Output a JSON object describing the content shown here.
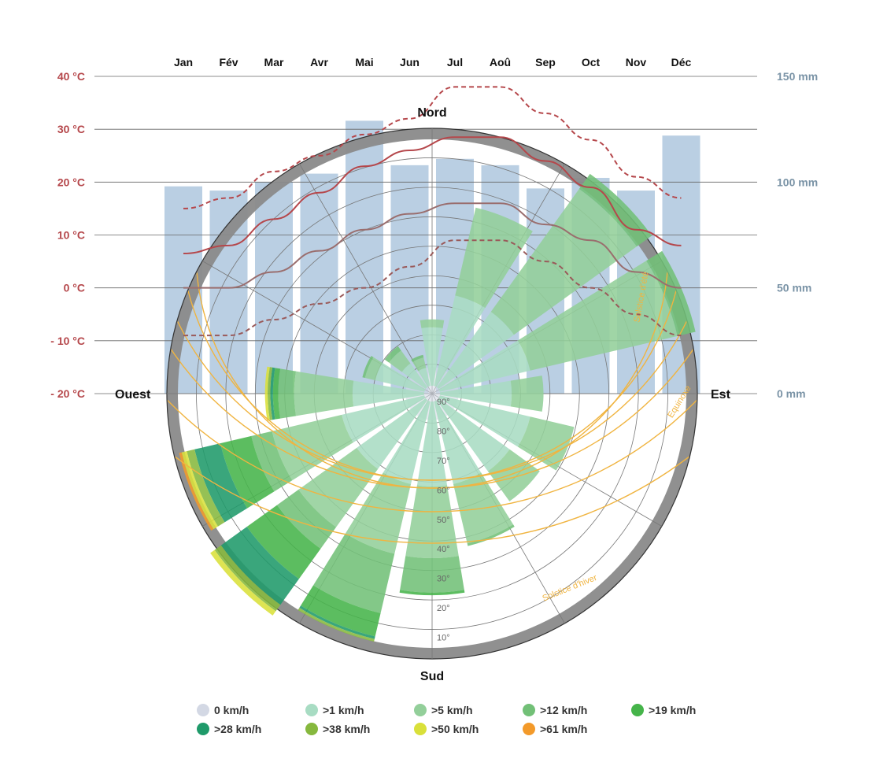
{
  "chart_data": {
    "type": "climate-windrose",
    "months": [
      "Jan",
      "Fév",
      "Mar",
      "Avr",
      "Mai",
      "Jun",
      "Jul",
      "Aoû",
      "Sep",
      "Oct",
      "Nov",
      "Déc"
    ],
    "temperature_axis": {
      "ticks": [
        "40 °C",
        "30 °C",
        "20 °C",
        "10 °C",
        "0 °C",
        "- 10 °C",
        "- 20 °C"
      ],
      "values": [
        40,
        30,
        20,
        10,
        0,
        -10,
        -20
      ],
      "range": [
        -20,
        40
      ]
    },
    "precipitation_axis": {
      "ticks": [
        "150 mm",
        "100 mm",
        "50 mm",
        "0 mm"
      ],
      "values": [
        150,
        100,
        50,
        0
      ],
      "range": [
        0,
        150
      ]
    },
    "precipitation_mm": [
      98,
      96,
      100,
      104,
      129,
      108,
      111,
      108,
      97,
      102,
      96,
      122
    ],
    "temperature_series": [
      {
        "values": [
          15,
          17,
          22,
          25,
          29,
          32,
          38,
          38,
          33,
          28,
          21,
          17
        ]
      },
      {
        "values": [
          6.5,
          8,
          13,
          18,
          23,
          26,
          28.5,
          28.5,
          24,
          19,
          11,
          8
        ]
      },
      {
        "values": [
          0,
          0,
          3,
          7,
          11,
          14,
          16,
          16,
          12,
          9,
          3,
          0
        ]
      },
      {
        "values": [
          -9,
          -9,
          -6,
          -3,
          0,
          4,
          9,
          9,
          5,
          0,
          -5,
          -9
        ]
      }
    ],
    "cardinal_labels": {
      "north": "Nord",
      "south": "Sud",
      "west": "Ouest",
      "east": "Est"
    },
    "sun_altitude_labels": [
      "90°",
      "80°",
      "70°",
      "60°",
      "50°",
      "40°",
      "30°",
      "20°",
      "10°"
    ],
    "sun_path_labels": {
      "winter_solstice": "Solstice d'hiver",
      "equinox": "Equinoxe",
      "summer_solstice": "Solstice d'été"
    },
    "wind_speed_classes": [
      {
        "label": "0 km/h",
        "color": "#d3d8e4"
      },
      {
        "label": ">1 km/h",
        "color": "#a8dcc3"
      },
      {
        "label": ">5 km/h",
        "color": "#93cf9a"
      },
      {
        "label": ">12 km/h",
        "color": "#72c077"
      },
      {
        "label": ">19 km/h",
        "color": "#45b44a"
      },
      {
        "label": ">28 km/h",
        "color": "#1f9a6a"
      },
      {
        "label": ">38 km/h",
        "color": "#86b83e"
      },
      {
        "label": ">50 km/h",
        "color": "#d9e03a"
      },
      {
        "label": ">61 km/h",
        "color": "#f39a2a"
      }
    ],
    "wind_directions_deg": [
      0,
      22.5,
      45,
      67.5,
      90,
      112.5,
      135,
      157.5,
      180,
      202.5,
      225,
      247.5,
      270,
      292.5,
      315,
      337.5
    ],
    "wind_rose": [
      [
        0.25,
        0.28,
        0,
        0,
        0,
        0,
        0,
        0
      ],
      [
        0.38,
        0.72,
        0,
        0,
        0,
        0,
        0,
        0
      ],
      [
        0.38,
        0.95,
        1.02,
        0,
        0,
        0,
        0,
        0
      ],
      [
        0.38,
        0.95,
        1.02,
        0,
        0,
        0,
        0,
        0
      ],
      [
        0.3,
        0.42,
        0,
        0,
        0,
        0,
        0,
        0
      ],
      [
        0.38,
        0.55,
        0,
        0,
        0,
        0,
        0,
        0
      ],
      [
        0.36,
        0.5,
        0,
        0,
        0,
        0,
        0,
        0
      ],
      [
        0.35,
        0.58,
        0.59,
        0,
        0,
        0,
        0,
        0
      ],
      [
        0.35,
        0.62,
        0.75,
        0.76,
        0,
        0,
        0,
        0
      ],
      [
        0.35,
        0.62,
        0.85,
        0.94,
        0.95,
        0.96,
        0,
        0
      ],
      [
        0.35,
        0.62,
        0.72,
        0.86,
        0.98,
        1.01,
        1.03,
        0
      ],
      [
        0.35,
        0.62,
        0.7,
        0.82,
        0.92,
        0.95,
        0.97,
        0.98
      ],
      [
        0.3,
        0.52,
        0.58,
        0.6,
        0.61,
        0.62,
        0.63,
        0
      ],
      [
        0.22,
        0.26,
        0.27,
        0,
        0,
        0,
        0,
        0
      ],
      [
        0.14,
        0.2,
        0.22,
        0,
        0,
        0,
        0,
        0
      ],
      [
        0.1,
        0.14,
        0.15,
        0,
        0,
        0,
        0,
        0
      ]
    ]
  }
}
